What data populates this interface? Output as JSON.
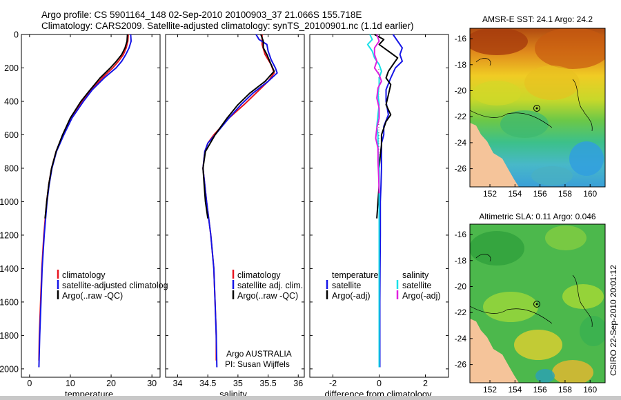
{
  "header": {
    "line1": "Argo profile: CS 5901164_148 02-Sep-2010 20100903_37 21.066S 155.718E",
    "line2": "Climatology: CARS2009. Satellite-adjusted climatology: synTS_20100901.nc (1.1d earlier)"
  },
  "side_stamp": "CSIRO 22-Sep-2010 20:01:12",
  "colors": {
    "climatology": "#e8141e",
    "satellite": "#1414e6",
    "argo": "#000000",
    "sal_satellite": "#18e0e8",
    "sal_argo": "#e020e0",
    "land": "#f5c49a"
  },
  "chart_data": [
    {
      "type": "line",
      "xlabel": "temperature",
      "xlim": [
        -2,
        32
      ],
      "xticks": [
        0,
        10,
        20,
        30
      ],
      "ylim": [
        2050,
        0
      ],
      "yticks": [
        0,
        200,
        400,
        600,
        800,
        1000,
        1200,
        1400,
        1600,
        1800,
        2000
      ],
      "legend_position": "lower-middle",
      "legend": [
        "climatology",
        "satellite-adjusted climatolog",
        "Argo(..raw -QC)"
      ],
      "series": [
        {
          "name": "climatology",
          "color": "#e8141e",
          "depth": [
            0,
            40,
            80,
            120,
            160,
            200,
            260,
            330,
            400,
            500,
            600,
            700,
            800,
            900,
            1000,
            1200,
            1400,
            1600,
            1800,
            1950
          ],
          "values": [
            24.2,
            24.1,
            23.7,
            23.0,
            21.8,
            20.4,
            17.8,
            15.2,
            12.9,
            10.2,
            8.2,
            6.5,
            5.4,
            4.7,
            4.2,
            3.5,
            3.0,
            2.7,
            2.4,
            2.3
          ]
        },
        {
          "name": "satellite-adjusted climatolog",
          "color": "#1414e6",
          "depth": [
            0,
            40,
            80,
            120,
            160,
            200,
            260,
            330,
            400,
            500,
            600,
            700,
            800,
            900,
            1000,
            1200,
            1400,
            1600,
            1800,
            1990
          ],
          "values": [
            24.8,
            24.9,
            24.4,
            23.6,
            22.6,
            21.2,
            18.3,
            15.4,
            13.2,
            10.4,
            8.4,
            6.6,
            5.5,
            4.8,
            4.3,
            3.6,
            3.1,
            2.8,
            2.5,
            2.3
          ]
        },
        {
          "name": "Argo(..raw -QC)",
          "color": "#000000",
          "depth": [
            0,
            40,
            80,
            120,
            160,
            200,
            260,
            330,
            400,
            500,
            600,
            700,
            800,
            900,
            1000,
            1100
          ],
          "values": [
            24.0,
            23.9,
            23.4,
            22.6,
            21.3,
            19.8,
            17.3,
            14.9,
            12.6,
            10.0,
            8.1,
            6.5,
            5.4,
            4.7,
            4.2,
            3.8
          ]
        }
      ]
    },
    {
      "type": "line",
      "xlabel": "salinity",
      "xlim": [
        33.8,
        36.1
      ],
      "xticks": [
        34,
        34.5,
        35,
        35.5,
        36
      ],
      "ylim": [
        2050,
        0
      ],
      "legend_position": "lower-middle",
      "legend": [
        "climatology",
        "satellite adj. clim.",
        "Argo(..raw -QC)"
      ],
      "annotation": [
        "Argo AUSTRALIA",
        "PI: Susan Wijffels"
      ],
      "series": [
        {
          "name": "climatology",
          "color": "#e8141e",
          "depth": [
            0,
            60,
            120,
            180,
            230,
            280,
            350,
            420,
            500,
            600,
            650,
            700,
            800,
            900,
            1000,
            1200,
            1400,
            1600,
            1800,
            1950
          ],
          "values": [
            35.4,
            35.4,
            35.45,
            35.55,
            35.6,
            35.5,
            35.3,
            35.1,
            34.85,
            34.6,
            34.5,
            34.45,
            34.42,
            34.45,
            34.48,
            34.55,
            34.6,
            34.62,
            34.64,
            34.64
          ]
        },
        {
          "name": "satellite adj. clim.",
          "color": "#1414e6",
          "depth": [
            0,
            30,
            60,
            100,
            150,
            200,
            230,
            280,
            350,
            420,
            500,
            600,
            650,
            700,
            800,
            900,
            1000,
            1200,
            1400,
            1600,
            1800,
            1990
          ],
          "values": [
            35.3,
            35.35,
            35.48,
            35.5,
            35.55,
            35.62,
            35.65,
            35.5,
            35.25,
            35.05,
            34.85,
            34.62,
            34.5,
            34.45,
            34.42,
            34.45,
            34.48,
            34.55,
            34.6,
            34.62,
            34.64,
            34.65
          ]
        },
        {
          "name": "Argo(..raw -QC)",
          "color": "#000000",
          "depth": [
            0,
            40,
            80,
            120,
            180,
            220,
            280,
            350,
            420,
            500,
            600,
            700,
            800,
            900,
            1000,
            1100
          ],
          "values": [
            35.38,
            35.42,
            35.42,
            35.48,
            35.55,
            35.6,
            35.45,
            35.2,
            35.0,
            34.82,
            34.62,
            34.46,
            34.42,
            34.44,
            34.46,
            34.5
          ]
        }
      ]
    },
    {
      "type": "line",
      "xlabel": "difference from climatology",
      "xlim": [
        -3,
        3
      ],
      "xticks": [
        -2,
        0,
        2
      ],
      "ylim": [
        2050,
        0
      ],
      "legend_position": "lower-middle",
      "legend_groups": [
        {
          "title": "temperature",
          "items": [
            "satellite",
            "Argo(-adj)"
          ]
        },
        {
          "title": "salinity",
          "items": [
            "satellite",
            "Argo(-adj)"
          ]
        }
      ],
      "series": [
        {
          "name": "satellite",
          "group": "temperature",
          "color": "#1414e6",
          "depth": [
            0,
            40,
            80,
            120,
            160,
            200,
            260,
            330,
            400,
            480,
            550,
            600,
            650,
            700,
            800,
            900,
            1000,
            1200,
            1400,
            1600,
            1800,
            1990
          ],
          "values": [
            0.6,
            0.8,
            1.0,
            0.9,
            1.0,
            0.7,
            0.5,
            0.3,
            0.3,
            0.4,
            0.2,
            0.2,
            0.1,
            0.1,
            0.1,
            0.08,
            0.05,
            0.05,
            0.04,
            0.03,
            0.03,
            0.03
          ]
        },
        {
          "name": "Argo(-adj)",
          "group": "temperature",
          "color": "#000000",
          "depth": [
            0,
            30,
            60,
            100,
            140,
            180,
            220,
            260,
            300,
            360,
            420,
            480,
            520,
            560,
            600,
            660,
            720,
            800,
            900,
            1000,
            1100
          ],
          "values": [
            -0.2,
            0.2,
            0.0,
            0.4,
            0.8,
            0.6,
            0.4,
            0.3,
            0.5,
            0.4,
            0.3,
            0.5,
            0.3,
            0.2,
            0.1,
            0.1,
            0.05,
            0.0,
            0.0,
            -0.05,
            -0.1
          ]
        },
        {
          "name": "satellite",
          "group": "salinity",
          "color": "#18e0e8",
          "depth": [
            0,
            30,
            60,
            100,
            140,
            180,
            220,
            260,
            300,
            360,
            420,
            480,
            550,
            600,
            650,
            700,
            800,
            900,
            1000,
            1200,
            1400,
            1600,
            1800,
            1990
          ],
          "values": [
            -0.4,
            -0.3,
            -0.5,
            -0.3,
            -0.2,
            0.0,
            0.1,
            0.0,
            0.0,
            -0.05,
            0.0,
            -0.05,
            -0.1,
            -0.05,
            -0.05,
            -0.05,
            0.0,
            0.0,
            0.0,
            0.0,
            0.0,
            0.0,
            0.0,
            0.0
          ]
        },
        {
          "name": "Argo(-adj)",
          "group": "salinity",
          "color": "#e020e0",
          "depth": [
            0,
            40,
            80,
            120,
            160,
            200,
            240,
            280,
            320,
            380,
            440,
            500,
            560,
            620,
            680,
            760,
            850,
            950
          ],
          "values": [
            -0.1,
            0.0,
            -0.2,
            -0.2,
            -0.1,
            -0.2,
            0.0,
            0.1,
            -0.05,
            -0.1,
            0.0,
            0.0,
            -0.1,
            -0.15,
            -0.05,
            -0.05,
            -0.02,
            0.0
          ]
        }
      ]
    },
    {
      "type": "heatmap",
      "title": "AMSR-E SST: 24.1 Argo: 24.2",
      "xlim": [
        150.4,
        161.2
      ],
      "ylim": [
        -27.4,
        -15.2
      ],
      "xticks": [
        152,
        154,
        156,
        158,
        160
      ],
      "yticks": [
        -16,
        -18,
        -20,
        -22,
        -24,
        -26
      ],
      "argo_position": [
        155.718,
        -21.066
      ]
    },
    {
      "type": "heatmap",
      "title": "Altimetric SLA: 0.11 Argo: 0.046",
      "xlim": [
        150.4,
        161.2
      ],
      "ylim": [
        -27.4,
        -15.2
      ],
      "xticks": [
        152,
        154,
        156,
        158,
        160
      ],
      "yticks": [
        -16,
        -18,
        -20,
        -22,
        -24,
        -26
      ],
      "argo_position": [
        155.718,
        -21.066
      ]
    }
  ]
}
